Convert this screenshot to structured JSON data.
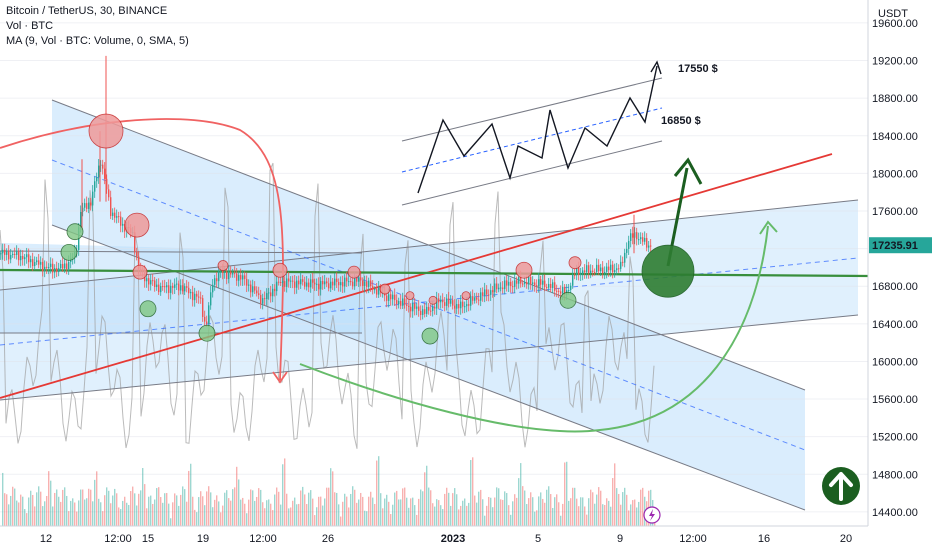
{
  "header": {
    "symbol_line": "Bitcoin / TetherUS, 30, BINANCE",
    "volume_line": "Vol · BTC",
    "ma_line": "MA (9, Vol · BTC: Volume, 0, SMA, 5)"
  },
  "price_axis": {
    "currency": "USDT",
    "current_price_label": "17235.91",
    "current_price_color": "#26a69a"
  },
  "annotations": {
    "target_high": "17550 $",
    "target_low": "16850 $"
  },
  "colors": {
    "channel_fill": "#bbdefb",
    "red_line": "#e53935",
    "green_line": "#388e3c",
    "arrow_dark_green": "#1b5e20",
    "blue_dashed": "#2962ff",
    "candle_up": "#26a69a",
    "candle_down": "#ef5350"
  },
  "icons": {
    "up_circle": "arrow-up-circle-icon",
    "flash": "flash-icon"
  },
  "chart_data": {
    "type": "candlestick",
    "x_tick_labels": [
      "12",
      "12:00",
      "15",
      "19",
      "12:00",
      "26",
      "2023",
      "5",
      "9",
      "12:00",
      "16",
      "20"
    ],
    "y_tick_labels": [
      19600,
      19200,
      18800,
      18400,
      18000,
      17600,
      17200,
      16800,
      16400,
      16000,
      15600,
      15200,
      14800,
      14400
    ],
    "ylim": [
      14250,
      19780
    ],
    "price_path": [
      [
        0,
        17150
      ],
      [
        20,
        17120
      ],
      [
        45,
        17000
      ],
      [
        58,
        16980
      ],
      [
        68,
        17050
      ],
      [
        75,
        17150
      ],
      [
        80,
        17600
      ],
      [
        90,
        17700
      ],
      [
        100,
        18150
      ],
      [
        110,
        17600
      ],
      [
        122,
        17450
      ],
      [
        132,
        17350
      ],
      [
        138,
        16980
      ],
      [
        148,
        16850
      ],
      [
        160,
        16780
      ],
      [
        180,
        16800
      ],
      [
        200,
        16650
      ],
      [
        205,
        16350
      ],
      [
        212,
        16850
      ],
      [
        220,
        16950
      ],
      [
        240,
        16900
      ],
      [
        262,
        16650
      ],
      [
        280,
        16850
      ],
      [
        320,
        16820
      ],
      [
        360,
        16860
      ],
      [
        385,
        16700
      ],
      [
        405,
        16600
      ],
      [
        425,
        16520
      ],
      [
        440,
        16650
      ],
      [
        460,
        16580
      ],
      [
        480,
        16700
      ],
      [
        500,
        16800
      ],
      [
        520,
        16850
      ],
      [
        545,
        16820
      ],
      [
        565,
        16720
      ],
      [
        575,
        16950
      ],
      [
        590,
        16970
      ],
      [
        610,
        16980
      ],
      [
        620,
        17000
      ],
      [
        628,
        17300
      ],
      [
        635,
        17350
      ],
      [
        645,
        17250
      ],
      [
        650,
        17236
      ]
    ],
    "markers": {
      "red": [
        [
          106,
          18450
        ],
        [
          137,
          17450
        ],
        [
          140,
          16950
        ],
        [
          223,
          17020
        ],
        [
          280,
          16970
        ],
        [
          354,
          16950
        ],
        [
          385,
          16770
        ],
        [
          410,
          16700
        ],
        [
          433,
          16650
        ],
        [
          466,
          16700
        ],
        [
          524,
          16970
        ],
        [
          575,
          17050
        ]
      ],
      "green": [
        [
          75,
          17380
        ],
        [
          69,
          17160
        ],
        [
          148,
          16560
        ],
        [
          207,
          16300
        ],
        [
          430,
          16270
        ],
        [
          568,
          16650
        ],
        [
          668,
          16960
        ]
      ]
    }
  }
}
